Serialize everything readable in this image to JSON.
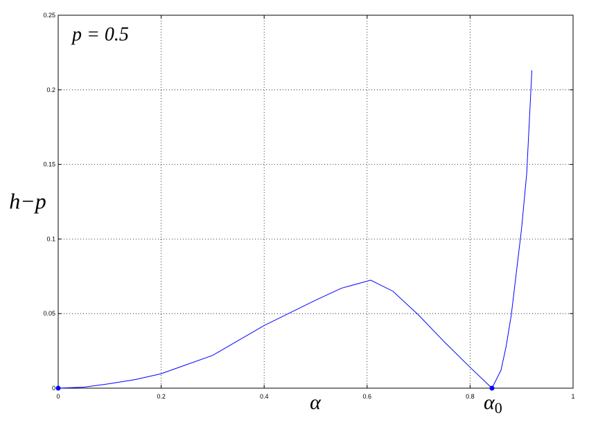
{
  "chart_data": {
    "type": "line",
    "annotation": "p = 0.5",
    "x_label": "α",
    "y_label": "h−p",
    "point_label": {
      "text": "α",
      "subscript": "0"
    },
    "x": [
      0,
      0.05,
      0.1,
      0.15,
      0.2,
      0.3,
      0.4,
      0.5,
      0.55,
      0.607,
      0.65,
      0.7,
      0.75,
      0.8,
      0.8425,
      0.86,
      0.87,
      0.88,
      0.9,
      0.91,
      0.92
    ],
    "series": [
      {
        "color": "#0000ff",
        "values": [
          0,
          0.0007,
          0.003,
          0.0058,
          0.0097,
          0.022,
          0.042,
          0.059,
          0.067,
          0.0724,
          0.065,
          0.049,
          0.031,
          0.014,
          0,
          0.012,
          0.028,
          0.049,
          0.107,
          0.144,
          0.213
        ]
      }
    ],
    "markers": {
      "color": "#0000ff",
      "x": [
        0,
        0.8425
      ],
      "values": [
        0,
        0
      ]
    },
    "xlim": [
      0,
      1
    ],
    "ylim": [
      0,
      0.25
    ],
    "xticks": [
      0,
      0.2,
      0.4,
      0.6,
      0.8,
      1
    ],
    "yticks": [
      0,
      0.05,
      0.1,
      0.15,
      0.2,
      0.25
    ],
    "grid": true
  }
}
